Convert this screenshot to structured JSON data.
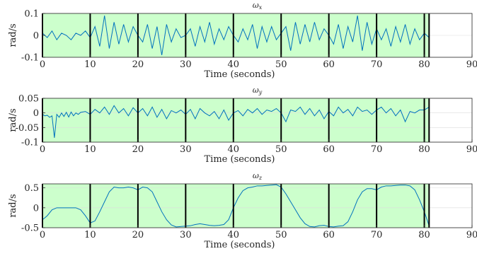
{
  "chart_data": [
    {
      "type": "line",
      "title": "ω_x",
      "title_base": "ω",
      "title_sub": "x",
      "xlabel": "Time (seconds)",
      "ylabel": "rad/s",
      "xlim": [
        0,
        90
      ],
      "ylim": [
        -0.1,
        0.1
      ],
      "xticks": [
        "0",
        "10",
        "20",
        "30",
        "40",
        "50",
        "60",
        "70",
        "80",
        "90"
      ],
      "yticks": [
        "0.1",
        "0",
        "-0.1"
      ],
      "grid": true,
      "segment_boundaries": [
        0,
        10,
        20,
        30,
        40,
        50,
        60,
        70,
        80,
        81
      ],
      "shaded_region_color": "#ccffcc",
      "line_color": "#0072bd",
      "series": [
        {
          "x": [
            0,
            1,
            2,
            3,
            4,
            5,
            6,
            7,
            8,
            9,
            10,
            11,
            12,
            13,
            14,
            15,
            16,
            17,
            18,
            19,
            20,
            21,
            22,
            23,
            24,
            25,
            26,
            27,
            28,
            29,
            30,
            31,
            32,
            33,
            34,
            35,
            36,
            37,
            38,
            39,
            40,
            41,
            42,
            43,
            44,
            45,
            46,
            47,
            48,
            49,
            50,
            51,
            52,
            53,
            54,
            55,
            56,
            57,
            58,
            59,
            60,
            61,
            62,
            63,
            64,
            65,
            66,
            67,
            68,
            69,
            70,
            71,
            72,
            73,
            74,
            75,
            76,
            77,
            78,
            79,
            80,
            81
          ],
          "values": [
            0.01,
            -0.01,
            0.02,
            -0.02,
            0.01,
            0.0,
            -0.02,
            0.01,
            0.0,
            0.02,
            -0.01,
            0.04,
            -0.05,
            0.09,
            -0.06,
            0.06,
            -0.04,
            0.05,
            -0.03,
            0.04,
            0.0,
            -0.03,
            0.05,
            -0.06,
            0.04,
            -0.09,
            0.05,
            -0.03,
            0.03,
            -0.01,
            0.0,
            0.03,
            -0.05,
            0.04,
            -0.03,
            0.06,
            -0.04,
            0.03,
            -0.02,
            0.04,
            0.0,
            -0.03,
            0.03,
            -0.02,
            0.05,
            -0.06,
            0.04,
            -0.03,
            0.04,
            -0.02,
            0.01,
            0.04,
            -0.07,
            0.06,
            -0.04,
            0.05,
            -0.03,
            0.06,
            -0.02,
            0.03,
            0.0,
            -0.04,
            0.05,
            -0.06,
            0.04,
            -0.03,
            0.09,
            -0.07,
            0.06,
            -0.04,
            0.03,
            -0.02,
            0.03,
            -0.05,
            0.04,
            -0.03,
            0.05,
            -0.04,
            0.03,
            -0.02,
            0.01,
            -0.01
          ]
        }
      ]
    },
    {
      "type": "line",
      "title": "ω_y",
      "title_base": "ω",
      "title_sub": "y",
      "xlabel": "Time (seconds)",
      "ylabel": "rad/s",
      "xlim": [
        0,
        90
      ],
      "ylim": [
        -0.1,
        0.05
      ],
      "xticks": [
        "0",
        "10",
        "20",
        "30",
        "40",
        "50",
        "60",
        "70",
        "80",
        "90"
      ],
      "yticks": [
        "0.05",
        "0",
        "-0.05",
        "-0.1"
      ],
      "grid": true,
      "segment_boundaries": [
        0,
        10,
        20,
        30,
        40,
        50,
        60,
        70,
        80,
        81
      ],
      "shaded_region_color": "#ccffcc",
      "line_color": "#0072bd",
      "series": [
        {
          "x": [
            0,
            0.5,
            1,
            1.5,
            2,
            2.5,
            3,
            3.5,
            4,
            4.5,
            5,
            5.5,
            6,
            6.5,
            7,
            7.5,
            8,
            9,
            10,
            11,
            12,
            13,
            14,
            15,
            16,
            17,
            18,
            19,
            20,
            21,
            22,
            23,
            24,
            25,
            26,
            27,
            28,
            29,
            30,
            31,
            32,
            33,
            34,
            35,
            36,
            37,
            38,
            39,
            40,
            41,
            42,
            43,
            44,
            45,
            46,
            47,
            48,
            49,
            50,
            51,
            52,
            53,
            54,
            55,
            56,
            57,
            58,
            59,
            60,
            61,
            62,
            63,
            64,
            65,
            66,
            67,
            68,
            69,
            70,
            71,
            72,
            73,
            74,
            75,
            76,
            77,
            78,
            79,
            80,
            81
          ],
          "values": [
            -0.005,
            -0.01,
            -0.008,
            -0.015,
            -0.01,
            -0.085,
            -0.005,
            -0.015,
            0.0,
            -0.012,
            0.002,
            -0.014,
            0.003,
            -0.01,
            0.0,
            -0.005,
            0.002,
            0.005,
            -0.005,
            0.012,
            0.0,
            0.02,
            -0.005,
            0.025,
            0.0,
            0.015,
            -0.01,
            0.018,
            0.0,
            0.015,
            -0.01,
            0.02,
            -0.015,
            0.012,
            -0.02,
            0.008,
            0.0,
            0.01,
            -0.005,
            0.012,
            -0.02,
            0.015,
            0.0,
            -0.01,
            0.005,
            -0.02,
            0.01,
            -0.025,
            0.0,
            0.008,
            -0.01,
            0.012,
            0.0,
            0.015,
            -0.005,
            0.01,
            0.005,
            0.015,
            0.0,
            -0.03,
            0.01,
            0.005,
            0.02,
            -0.005,
            0.015,
            -0.01,
            0.01,
            -0.02,
            0.005,
            -0.01,
            0.02,
            0.0,
            0.012,
            -0.01,
            0.02,
            0.005,
            0.01,
            -0.005,
            0.01,
            0.02,
            0.0,
            0.015,
            -0.01,
            0.01,
            -0.03,
            0.005,
            0.0,
            0.01,
            0.01,
            0.02
          ]
        }
      ]
    },
    {
      "type": "line",
      "title": "ω_z",
      "title_base": "ω",
      "title_sub": "z",
      "xlabel": "Time (seconds)",
      "ylabel": "rad/s",
      "xlim": [
        0,
        90
      ],
      "ylim": [
        -0.5,
        0.6
      ],
      "xticks": [
        "0",
        "10",
        "20",
        "30",
        "40",
        "50",
        "60",
        "70",
        "80",
        "90"
      ],
      "yticks": [
        "0.5",
        "0",
        "-0.5"
      ],
      "grid": true,
      "segment_boundaries": [
        0,
        10,
        20,
        30,
        40,
        50,
        60,
        70,
        80,
        81
      ],
      "shaded_region_color": "#ccffcc",
      "line_color": "#0072bd",
      "series": [
        {
          "x": [
            0,
            1,
            2,
            3,
            4,
            5,
            6,
            7,
            8,
            9,
            10,
            11,
            12,
            13,
            14,
            15,
            16,
            17,
            18,
            19,
            20,
            21,
            22,
            23,
            24,
            25,
            26,
            27,
            28,
            29,
            30,
            31,
            32,
            33,
            34,
            35,
            36,
            37,
            38,
            39,
            40,
            41,
            42,
            43,
            44,
            45,
            46,
            47,
            48,
            49,
            50,
            51,
            52,
            53,
            54,
            55,
            56,
            57,
            58,
            59,
            60,
            61,
            62,
            63,
            64,
            65,
            66,
            67,
            68,
            69,
            70,
            71,
            72,
            73,
            74,
            75,
            76,
            77,
            78,
            79,
            80,
            81
          ],
          "values": [
            -0.3,
            -0.2,
            -0.05,
            0.0,
            0.0,
            0.0,
            0.0,
            0.0,
            -0.05,
            -0.2,
            -0.38,
            -0.33,
            -0.1,
            0.15,
            0.4,
            0.52,
            0.5,
            0.5,
            0.52,
            0.5,
            0.45,
            0.52,
            0.5,
            0.4,
            0.15,
            -0.1,
            -0.3,
            -0.43,
            -0.48,
            -0.47,
            -0.46,
            -0.45,
            -0.42,
            -0.4,
            -0.42,
            -0.44,
            -0.45,
            -0.44,
            -0.42,
            -0.3,
            0.0,
            0.25,
            0.43,
            0.5,
            0.52,
            0.55,
            0.55,
            0.56,
            0.57,
            0.58,
            0.52,
            0.35,
            0.15,
            -0.05,
            -0.25,
            -0.4,
            -0.47,
            -0.48,
            -0.45,
            -0.44,
            -0.47,
            -0.48,
            -0.46,
            -0.45,
            -0.35,
            -0.1,
            0.2,
            0.4,
            0.48,
            0.48,
            0.45,
            0.52,
            0.55,
            0.55,
            0.56,
            0.57,
            0.57,
            0.55,
            0.45,
            0.2,
            -0.1,
            -0.45
          ]
        }
      ]
    }
  ]
}
